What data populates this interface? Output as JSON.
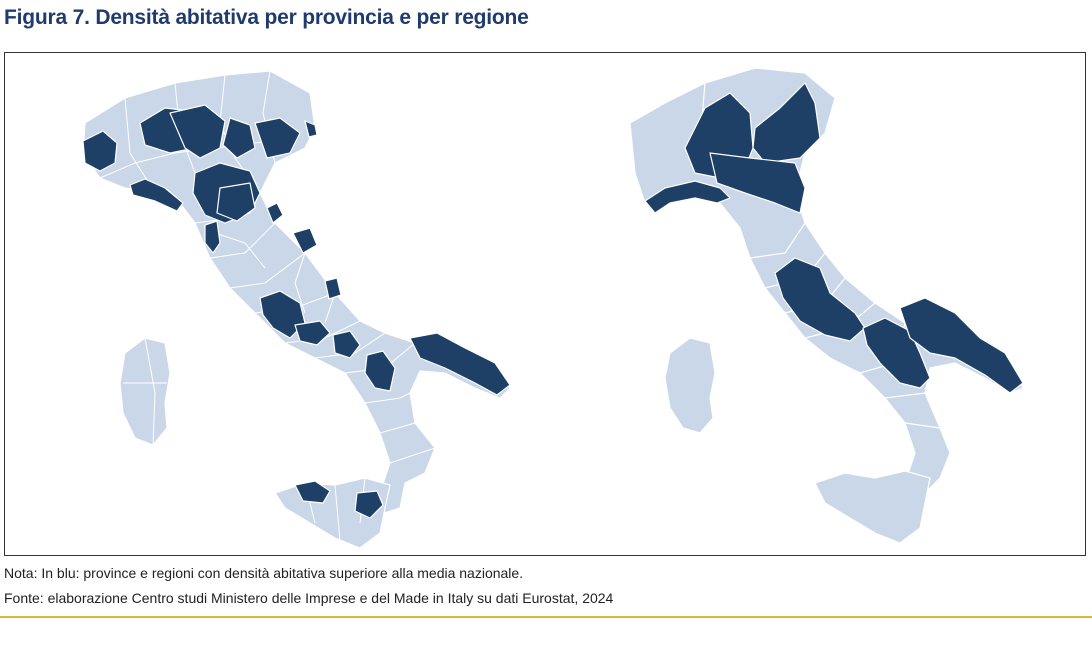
{
  "title": "Figura 7. Densità abitativa per provincia e per regione",
  "note": "Nota: In blu: province e regioni con densità abitativa superiore alla media nazionale.",
  "source": "Fonte: elaborazione Centro studi Ministero delle Imprese e del Made in Italy su dati Eurostat, 2024",
  "colors": {
    "above_average": "#1e3f66",
    "below_average": "#c9d7e8",
    "border": "#ffffff",
    "accent_rule": "#e0b63a"
  },
  "maps": [
    {
      "name": "provinces-map",
      "highlighted_areas": [
        "Torino",
        "Milano",
        "Monza e Brianza",
        "Varese",
        "Como",
        "Lecco",
        "Bergamo",
        "Brescia",
        "Padova",
        "Venezia",
        "Treviso",
        "Trieste",
        "Genova",
        "Bologna",
        "Modena",
        "Reggio Emilia",
        "Parma",
        "Rimini",
        "Prato",
        "Firenze",
        "Pisa",
        "Livorno",
        "Pescara",
        "Roma",
        "Latina",
        "Napoli",
        "Caserta",
        "Salerno",
        "Bari",
        "Barletta-Andria-Trani",
        "Taranto",
        "Palermo",
        "Catania"
      ]
    },
    {
      "name": "regions-map",
      "highlighted_areas": [
        "Lombardia",
        "Veneto",
        "Liguria",
        "Emilia-Romagna",
        "Lazio",
        "Campania",
        "Puglia"
      ]
    }
  ]
}
